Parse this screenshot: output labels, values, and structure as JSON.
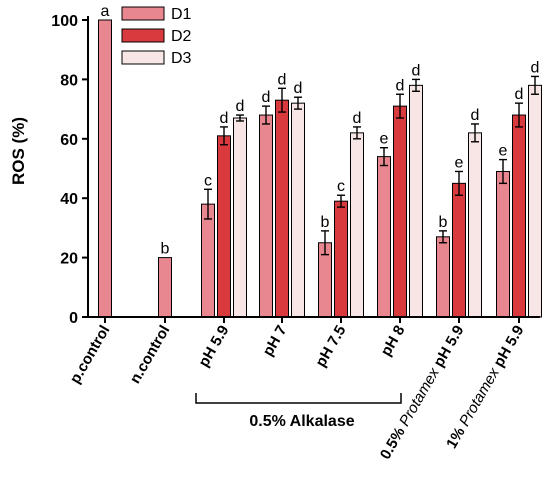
{
  "chart_data": {
    "type": "bar",
    "ylabel": "ROS (%)",
    "ylim": [
      0,
      100
    ],
    "yticks": [
      "0",
      "20",
      "40",
      "60",
      "80",
      "100"
    ],
    "categories": [
      {
        "parts": [
          {
            "t": "p.control",
            "i": false
          }
        ]
      },
      {
        "parts": [
          {
            "t": "n.control",
            "i": false
          }
        ]
      },
      {
        "parts": [
          {
            "t": "pH 5.9",
            "i": false
          }
        ]
      },
      {
        "parts": [
          {
            "t": "pH 7",
            "i": false
          }
        ]
      },
      {
        "parts": [
          {
            "t": "pH 7.5",
            "i": false
          }
        ]
      },
      {
        "parts": [
          {
            "t": "pH 8",
            "i": false
          }
        ]
      },
      {
        "parts": [
          {
            "t": "0.5% ",
            "i": false
          },
          {
            "t": "Protamex",
            "i": true
          },
          {
            "t": " pH 5.9",
            "i": false
          }
        ]
      },
      {
        "parts": [
          {
            "t": "1% ",
            "i": false
          },
          {
            "t": "Protamex",
            "i": true
          },
          {
            "t": " pH 5.9",
            "i": false
          }
        ]
      }
    ],
    "series": [
      {
        "name": "D1",
        "color": "#e8878f",
        "values": [
          100,
          20,
          38,
          68,
          25,
          54,
          27,
          49
        ],
        "errors": [
          0,
          0,
          5,
          3,
          4,
          3,
          2,
          4
        ],
        "labels": [
          "a",
          "b",
          "c",
          "d",
          "b",
          "e",
          "b",
          "e"
        ]
      },
      {
        "name": "D2",
        "color": "#d83a3e",
        "values": [
          null,
          null,
          61,
          73,
          39,
          71,
          45,
          68
        ],
        "errors": [
          0,
          0,
          3,
          4,
          2,
          4,
          4,
          4
        ],
        "labels": [
          "",
          "",
          "d",
          "d",
          "c",
          "d",
          "e",
          "d"
        ]
      },
      {
        "name": "D3",
        "color": "#f8e6e6",
        "values": [
          null,
          null,
          67,
          72,
          62,
          78,
          62,
          78
        ],
        "errors": [
          0,
          0,
          1,
          2,
          2,
          2,
          3,
          3
        ],
        "labels": [
          "",
          "",
          "d",
          "d",
          "d",
          "d",
          "d",
          "d"
        ]
      }
    ],
    "legend_position": "top-center",
    "group_bracket": {
      "label": "0.5% Alkalase",
      "from_category": 2,
      "to_category": 5
    }
  }
}
